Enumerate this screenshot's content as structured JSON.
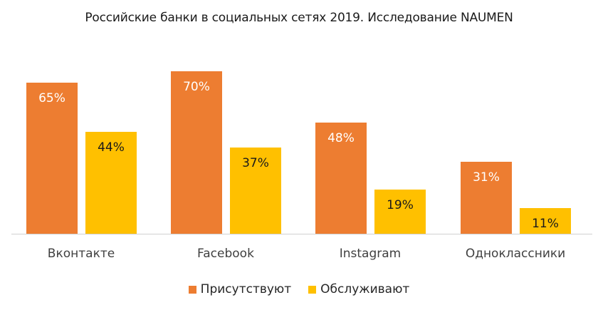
{
  "chart_data": {
    "type": "bar",
    "title": "Российские банки в социальных сетях 2019. Исследование NAUMEN",
    "categories": [
      "Вконтакте",
      "Facebook",
      "Instagram",
      "Одноклассники"
    ],
    "series": [
      {
        "name": "Присутствуют",
        "color": "#ED7D31",
        "values": [
          65,
          70,
          48,
          31
        ],
        "labels": [
          "65%",
          "70%",
          "48%",
          "31%"
        ],
        "label_color": "#ffffff"
      },
      {
        "name": "Обслуживают",
        "color": "#FFC000",
        "values": [
          44,
          37,
          19,
          11
        ],
        "labels": [
          "44%",
          "37%",
          "19%",
          "11%"
        ],
        "label_color": "#1a1a1a"
      }
    ],
    "xlabel": "",
    "ylabel": "",
    "ylim": [
      0,
      70
    ],
    "grid": false,
    "legend_position": "bottom",
    "value_unit": "%"
  }
}
